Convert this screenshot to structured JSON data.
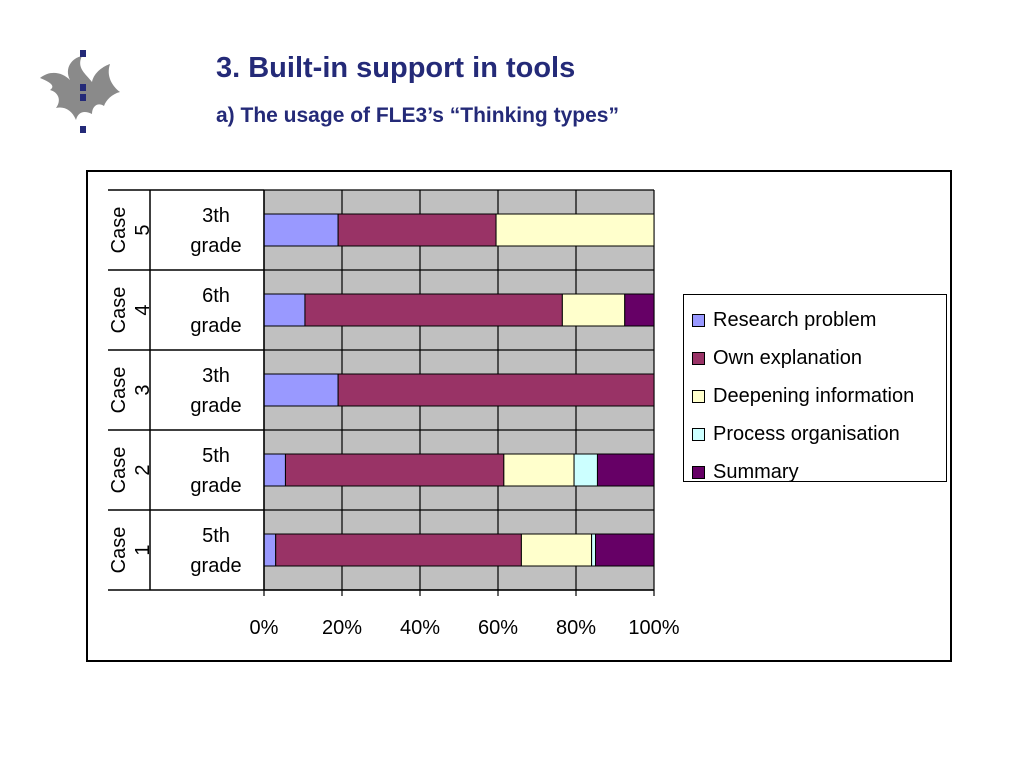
{
  "slide": {
    "title": "3. Built-in support in tools",
    "subtitle": "a) The usage of FLE3’s “Thinking types”"
  },
  "colors": {
    "title": "#242a78",
    "plot_background": "#c0c0c0",
    "logo": "#8a8a8a",
    "logo_dots": "#242a78"
  },
  "chart_data": {
    "type": "bar",
    "orientation": "horizontal",
    "stacked": "percent",
    "categories": [
      {
        "case": "Case 5",
        "grade": "3th grade"
      },
      {
        "case": "Case 4",
        "grade": "6th grade"
      },
      {
        "case": "Case 3",
        "grade": "3th grade"
      },
      {
        "case": "Case 2",
        "grade": "5th grade"
      },
      {
        "case": "Case 1",
        "grade": "5th grade"
      }
    ],
    "category_labels": [
      [
        "Case",
        "5"
      ],
      [
        "Case",
        "4"
      ],
      [
        "Case",
        "3"
      ],
      [
        "Case",
        "2"
      ],
      [
        "Case",
        "1"
      ]
    ],
    "grade_labels": [
      [
        "3th",
        "grade"
      ],
      [
        "6th",
        "grade"
      ],
      [
        "3th",
        "grade"
      ],
      [
        "5th",
        "grade"
      ],
      [
        "5th",
        "grade"
      ]
    ],
    "series": [
      {
        "name": "Research problem",
        "color": "#9999ff",
        "values": [
          19,
          10.5,
          19,
          5.5,
          3
        ]
      },
      {
        "name": "Own explanation",
        "color": "#993366",
        "values": [
          40.5,
          66,
          81,
          56,
          63
        ]
      },
      {
        "name": "Deepening information",
        "color": "#ffffcc",
        "values": [
          40.5,
          16,
          0,
          18,
          18
        ]
      },
      {
        "name": "Process organisation",
        "color": "#ccffff",
        "values": [
          0,
          0,
          0,
          6,
          1
        ]
      },
      {
        "name": "Summary",
        "color": "#660066",
        "values": [
          0,
          7.5,
          0,
          14.5,
          15
        ]
      }
    ],
    "xlim": [
      0,
      100
    ],
    "x_ticks": [
      "0%",
      "20%",
      "40%",
      "60%",
      "80%",
      "100%"
    ],
    "grid": true,
    "legend_position": "right"
  }
}
